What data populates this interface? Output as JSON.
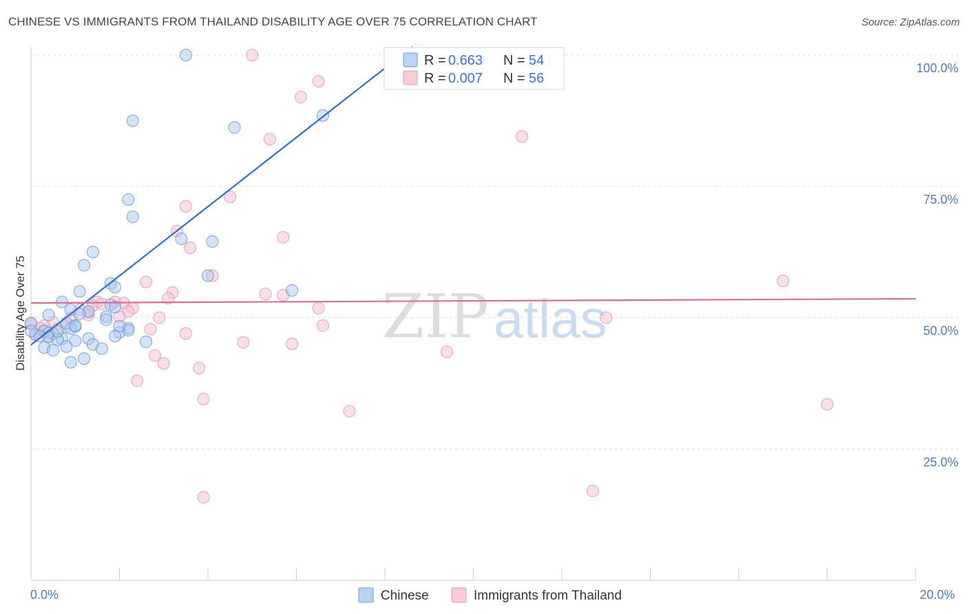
{
  "title": "CHINESE VS IMMIGRANTS FROM THAILAND DISABILITY AGE OVER 75 CORRELATION CHART",
  "source": "Source: ZipAtlas.com",
  "chart_data": {
    "type": "scatter",
    "title": "CHINESE VS IMMIGRANTS FROM THAILAND DISABILITY AGE OVER 75 CORRELATION CHART",
    "xlabel": "",
    "ylabel": "Disability Age Over 75",
    "xlim": [
      0,
      20
    ],
    "ylim": [
      0,
      100
    ],
    "x_tick_labels": [
      "0.0%",
      "20.0%"
    ],
    "y_ticks": [
      25,
      50,
      75,
      100
    ],
    "y_tick_labels": [
      "25.0%",
      "50.0%",
      "75.0%",
      "100.0%"
    ],
    "grid": true,
    "watermark": {
      "part1": "ZIP",
      "part2": "atlas"
    },
    "legend": [
      {
        "name": "Chinese",
        "r_label": "R =",
        "r_value": "0.663",
        "n_label": "N =",
        "n_value": "54",
        "color": "#a9c8f0",
        "stroke": "#5b8fd6",
        "line": "#2e6fcc"
      },
      {
        "name": "Immigrants from Thailand",
        "r_label": "R =",
        "r_value": "0.007",
        "n_label": "N =",
        "n_value": "56",
        "color": "#f7bfd0",
        "stroke": "#e68aa8",
        "line": "#e06b96"
      }
    ],
    "series": [
      {
        "name": "Chinese",
        "trend": {
          "x0": 0.0,
          "y0": 44.8,
          "x1": 8.0,
          "y1": 97.5,
          "solid_end_x": 8.0,
          "dash_end_x": 8.7
        },
        "points": [
          [
            3.5,
            100.0
          ],
          [
            6.6,
            88.5
          ],
          [
            2.3,
            87.5
          ],
          [
            4.6,
            86.2
          ],
          [
            2.2,
            72.5
          ],
          [
            2.3,
            69.2
          ],
          [
            3.4,
            65.0
          ],
          [
            4.1,
            64.5
          ],
          [
            1.4,
            62.5
          ],
          [
            1.2,
            60.0
          ],
          [
            4.0,
            58.0
          ],
          [
            1.8,
            56.5
          ],
          [
            1.9,
            55.8
          ],
          [
            5.9,
            55.2
          ],
          [
            1.1,
            55.0
          ],
          [
            0.7,
            53.0
          ],
          [
            1.8,
            52.5
          ],
          [
            0.9,
            51.5
          ],
          [
            1.3,
            51.2
          ],
          [
            1.9,
            52.0
          ],
          [
            1.1,
            50.7
          ],
          [
            1.7,
            50.2
          ],
          [
            0.4,
            50.5
          ],
          [
            1.7,
            49.6
          ],
          [
            0.0,
            49.0
          ],
          [
            0.8,
            49.0
          ],
          [
            1.0,
            48.3
          ],
          [
            0.9,
            47.9
          ],
          [
            2.2,
            48.0
          ],
          [
            0.3,
            47.5
          ],
          [
            0.5,
            47.0
          ],
          [
            0.4,
            47.1
          ],
          [
            0.1,
            46.8
          ],
          [
            0.2,
            46.5
          ],
          [
            0.4,
            46.3
          ],
          [
            0.7,
            46.0
          ],
          [
            2.0,
            47.2
          ],
          [
            2.2,
            47.6
          ],
          [
            0.6,
            45.8
          ],
          [
            1.3,
            46.0
          ],
          [
            2.6,
            45.4
          ],
          [
            1.0,
            45.6
          ],
          [
            1.4,
            44.9
          ],
          [
            0.3,
            44.3
          ],
          [
            0.8,
            44.5
          ],
          [
            1.6,
            44.1
          ],
          [
            0.5,
            43.8
          ],
          [
            1.2,
            42.2
          ],
          [
            0.9,
            41.5
          ],
          [
            1.9,
            46.5
          ],
          [
            0.0,
            47.5
          ],
          [
            0.6,
            47.4
          ],
          [
            1.0,
            48.5
          ],
          [
            2.0,
            48.4
          ]
        ]
      },
      {
        "name": "Immigrants from Thailand",
        "trend": {
          "x0": 0.0,
          "y0": 52.8,
          "x1": 20.0,
          "y1": 53.6
        },
        "points": [
          [
            5.0,
            100.0
          ],
          [
            6.5,
            95.0
          ],
          [
            6.1,
            92.0
          ],
          [
            5.4,
            84.0
          ],
          [
            11.1,
            84.5
          ],
          [
            4.5,
            73.0
          ],
          [
            3.5,
            71.2
          ],
          [
            3.3,
            66.5
          ],
          [
            5.7,
            65.3
          ],
          [
            3.6,
            63.3
          ],
          [
            4.1,
            58.0
          ],
          [
            17.0,
            57.0
          ],
          [
            2.6,
            56.8
          ],
          [
            3.2,
            54.8
          ],
          [
            5.3,
            54.5
          ],
          [
            5.7,
            54.3
          ],
          [
            3.1,
            53.7
          ],
          [
            1.5,
            53.0
          ],
          [
            1.9,
            53.0
          ],
          [
            2.1,
            52.8
          ],
          [
            1.4,
            52.3
          ],
          [
            2.3,
            51.8
          ],
          [
            6.5,
            51.8
          ],
          [
            1.1,
            51.5
          ],
          [
            1.3,
            51.0
          ],
          [
            2.2,
            51.2
          ],
          [
            0.9,
            50.0
          ],
          [
            1.3,
            50.5
          ],
          [
            2.0,
            50.2
          ],
          [
            2.9,
            50.0
          ],
          [
            13.0,
            50.0
          ],
          [
            0.5,
            49.2
          ],
          [
            0.3,
            48.5
          ],
          [
            6.6,
            48.5
          ],
          [
            0.2,
            48.0
          ],
          [
            0.6,
            47.8
          ],
          [
            2.7,
            47.8
          ],
          [
            3.5,
            47.0
          ],
          [
            0.1,
            46.8
          ],
          [
            0.4,
            46.5
          ],
          [
            4.8,
            45.3
          ],
          [
            5.9,
            45.0
          ],
          [
            2.8,
            42.8
          ],
          [
            9.4,
            43.5
          ],
          [
            3.0,
            41.3
          ],
          [
            3.8,
            40.4
          ],
          [
            2.4,
            38.0
          ],
          [
            3.9,
            34.5
          ],
          [
            18.0,
            33.5
          ],
          [
            7.2,
            32.2
          ],
          [
            0.3,
            47.3
          ],
          [
            0.8,
            48.2
          ],
          [
            12.7,
            17.0
          ],
          [
            3.9,
            15.8
          ],
          [
            1.6,
            52.6
          ],
          [
            0.0,
            48.8
          ]
        ]
      }
    ]
  }
}
